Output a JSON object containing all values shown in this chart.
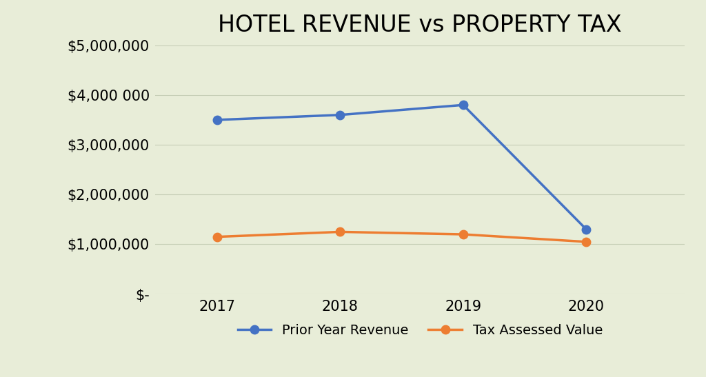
{
  "title": "HOTEL REVENUE vs PROPERTY TAX",
  "years": [
    2017,
    2018,
    2019,
    2020
  ],
  "prior_year_revenue": [
    3500000,
    3600000,
    3800000,
    1300000
  ],
  "tax_assessed_value": [
    1150000,
    1250000,
    1200000,
    1050000
  ],
  "ylim": [
    0,
    5000000
  ],
  "yticks": [
    0,
    1000000,
    2000000,
    3000000,
    4000000,
    5000000
  ],
  "ytick_labels": [
    "$-",
    "$1,000,000",
    "$2,000,000",
    "$3,000,000",
    "$4,000 000",
    "$5,000,000"
  ],
  "background_color": "#e8edd8",
  "blue_color": "#4472c4",
  "orange_color": "#ed7d31",
  "legend_labels": [
    "Prior Year Revenue",
    "Tax Assessed Value"
  ],
  "title_fontsize": 24,
  "tick_fontsize": 15,
  "legend_fontsize": 14,
  "line_width": 2.5,
  "marker_size": 9
}
